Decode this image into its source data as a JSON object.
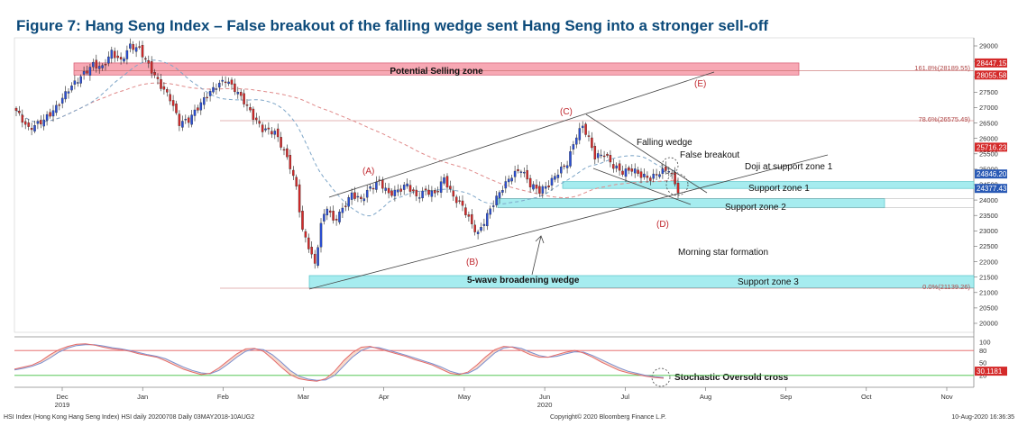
{
  "title": "Figure 7: Hang Seng Index – False breakout of the falling wedge sent Hang Seng into a stronger sell-off",
  "chart_data": {
    "type": "candlestick",
    "price_axis": {
      "min": 19700,
      "max": 29200,
      "ticks": [
        20000,
        20500,
        21000,
        21500,
        22000,
        22500,
        23000,
        23500,
        24000,
        24500,
        25000,
        25500,
        26000,
        26500,
        27000,
        27500,
        28000,
        28500,
        29000
      ]
    },
    "stoch_axis": {
      "min": -5,
      "max": 105,
      "ticks": [
        20,
        50,
        80,
        100
      ]
    },
    "time_axis": {
      "months": [
        "Dec",
        "Jan",
        "Feb",
        "Mar",
        "Apr",
        "May",
        "Jun",
        "Jul",
        "Aug",
        "Sep",
        "Oct",
        "Nov"
      ],
      "years": {
        "Dec": "2019",
        "Jun": "2020"
      }
    },
    "anchors": [
      [
        0,
        26900
      ],
      [
        4,
        26300
      ],
      [
        9,
        26600
      ],
      [
        13,
        27000
      ],
      [
        17,
        27600
      ],
      [
        21,
        28000
      ],
      [
        25,
        28400
      ],
      [
        28,
        28300
      ],
      [
        31,
        28800
      ],
      [
        34,
        28500
      ],
      [
        37,
        29000
      ],
      [
        40,
        28900
      ],
      [
        44,
        28200
      ],
      [
        47,
        27700
      ],
      [
        50,
        27300
      ],
      [
        53,
        26500
      ],
      [
        56,
        26600
      ],
      [
        59,
        27000
      ],
      [
        62,
        27400
      ],
      [
        65,
        27700
      ],
      [
        68,
        27900
      ],
      [
        71,
        27600
      ],
      [
        74,
        27200
      ],
      [
        77,
        26700
      ],
      [
        80,
        26300
      ],
      [
        84,
        26200
      ],
      [
        87,
        25600
      ],
      [
        89,
        25100
      ],
      [
        91,
        24400
      ],
      [
        93,
        23000
      ],
      [
        95,
        22500
      ],
      [
        97,
        21900
      ],
      [
        99,
        23200
      ],
      [
        101,
        23800
      ],
      [
        103,
        23300
      ],
      [
        106,
        23700
      ],
      [
        109,
        24200
      ],
      [
        112,
        24000
      ],
      [
        115,
        24400
      ],
      [
        118,
        24600
      ],
      [
        121,
        24200
      ],
      [
        124,
        24300
      ],
      [
        127,
        24500
      ],
      [
        130,
        24100
      ],
      [
        133,
        24300
      ],
      [
        136,
        24200
      ],
      [
        139,
        24700
      ],
      [
        142,
        24100
      ],
      [
        145,
        23800
      ],
      [
        148,
        23200
      ],
      [
        150,
        22900
      ],
      [
        152,
        23300
      ],
      [
        155,
        23900
      ],
      [
        158,
        24400
      ],
      [
        161,
        24800
      ],
      [
        164,
        25000
      ],
      [
        167,
        24500
      ],
      [
        170,
        24300
      ],
      [
        173,
        24500
      ],
      [
        176,
        24900
      ],
      [
        179,
        25200
      ],
      [
        182,
        26100
      ],
      [
        184,
        26400
      ],
      [
        186,
        26000
      ],
      [
        188,
        25400
      ],
      [
        191,
        25500
      ],
      [
        194,
        25100
      ],
      [
        197,
        24900
      ],
      [
        200,
        25000
      ],
      [
        203,
        24800
      ],
      [
        206,
        24700
      ],
      [
        209,
        24900
      ],
      [
        212,
        25000
      ],
      [
        215,
        24300
      ]
    ],
    "levels": {
      "fib_161_8": 28189.55,
      "fib_78_6": 26575.49,
      "fib_0": 21139.26,
      "selling_zone": [
        28055.58,
        28447.15
      ],
      "support_zone_1": [
        24377.43,
        24600
      ],
      "support_zone_2": [
        23750,
        24050
      ],
      "support_zone_3": [
        21150,
        21550
      ]
    },
    "price_tags": [
      {
        "value": 28447.15,
        "text": "28447.15",
        "color": "#d42a2a"
      },
      {
        "value": 28055.58,
        "text": "28055.58",
        "color": "#d42a2a"
      },
      {
        "value": 25716.23,
        "text": "25716.23",
        "color": "#d42a2a"
      },
      {
        "value": 24846.2,
        "text": "24846.20",
        "color": "#2a5ab5"
      },
      {
        "value": 24377.43,
        "text": "24377.43",
        "color": "#2a5ab5"
      }
    ],
    "stoch_tag": {
      "value": 30.1181,
      "text": "30.1181"
    },
    "stochastic_k": [
      35,
      40,
      45,
      55,
      70,
      82,
      90,
      95,
      96,
      93,
      88,
      84,
      82,
      78,
      72,
      68,
      64,
      55,
      45,
      35,
      28,
      22,
      25,
      38,
      55,
      72,
      84,
      85,
      78,
      60,
      40,
      22,
      12,
      8,
      6,
      12,
      30,
      55,
      75,
      88,
      90,
      84,
      78,
      72,
      66,
      58,
      52,
      45,
      35,
      25,
      22,
      28,
      45,
      65,
      82,
      90,
      88,
      80,
      70,
      64,
      64,
      70,
      76,
      80,
      74,
      64,
      52,
      42,
      32,
      26,
      22,
      18,
      15,
      13
    ],
    "stochastic_d": [
      33,
      37,
      42,
      50,
      62,
      76,
      86,
      92,
      94,
      94,
      91,
      87,
      84,
      80,
      75,
      70,
      66,
      60,
      50,
      40,
      32,
      26,
      24,
      32,
      47,
      64,
      78,
      84,
      82,
      70,
      52,
      32,
      18,
      11,
      8,
      9,
      20,
      42,
      64,
      80,
      88,
      87,
      81,
      75,
      69,
      62,
      55,
      48,
      40,
      30,
      24,
      25,
      36,
      55,
      74,
      86,
      89,
      85,
      76,
      68,
      64,
      66,
      72,
      77,
      76,
      68,
      58,
      48,
      38,
      30,
      25,
      20,
      17,
      15
    ],
    "annotations": {
      "potential_selling_zone": "Potential Selling zone",
      "fib_161_8_label": "161.8%(28189.55)",
      "fib_78_6_label": "78.6%(26575.49)",
      "fib_0_label": "0.0%(21139.26)",
      "wave_a": "(A)",
      "wave_b": "(B)",
      "wave_c": "(C)",
      "wave_d": "(D)",
      "wave_e": "(E)",
      "falling_wedge": "Falling wedge",
      "false_breakout": "False breakout",
      "doji_support": "Doji at support zone 1",
      "support_zone_1": "Support zone 1",
      "support_zone_2": "Support zone 2",
      "support_zone_3": "Support zone 3",
      "morning_star": "Morning star formation",
      "broadening_wedge": "5-wave broadening wedge",
      "stoch_oversold": "Stochastic Oversold cross"
    }
  },
  "footer": {
    "left": "HSI Index (Hong Kong Hang Seng Index) HSI daily 20200708  Daily 03MAY2018-10AUG2",
    "center": "Copyright© 2020 Bloomberg Finance L.P.",
    "right": "10-Aug-2020 16:36:35"
  },
  "colors": {
    "title": "#0c4a7a",
    "up": "#2a4fd6",
    "down": "#d42a2a",
    "zone_red": "#f7a8b4",
    "zone_cyan": "#a6ecef",
    "stoch_k": "#e26b6b",
    "stoch_d": "#7a8fd0"
  }
}
